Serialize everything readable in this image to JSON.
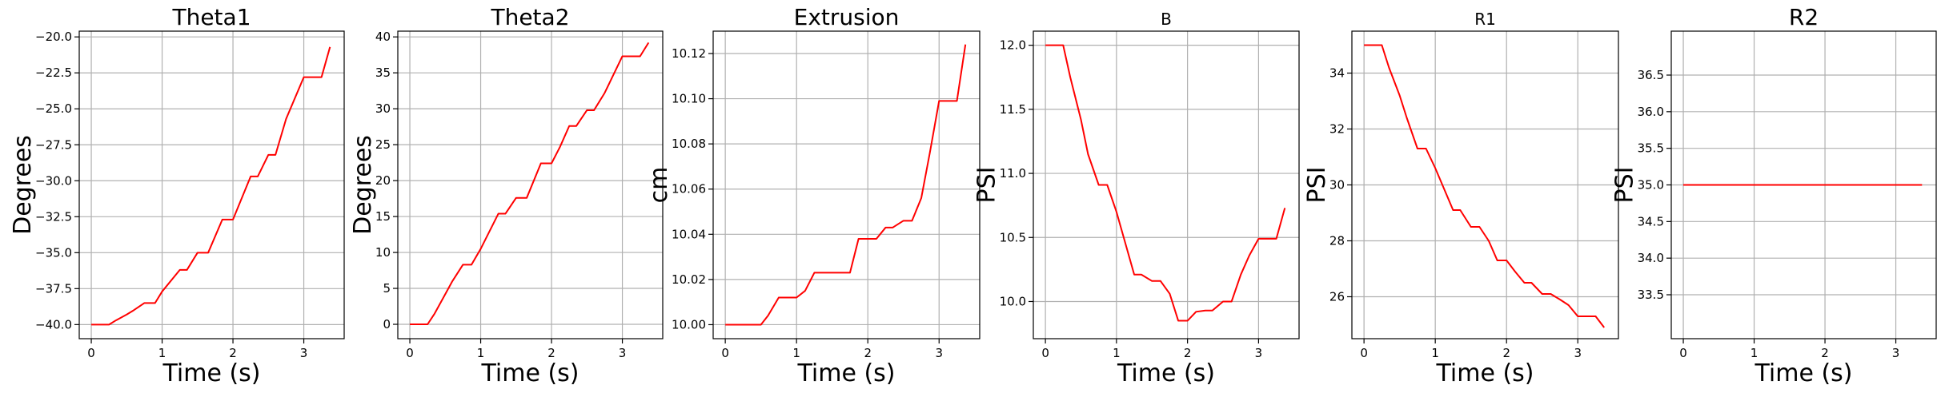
{
  "chart_data": [
    {
      "type": "line",
      "title": "Theta1",
      "title_size": "large",
      "xlabel": "Time (s)",
      "ylabel": "Degrees",
      "xlim": [
        -0.17,
        3.57
      ],
      "ylim": [
        -40.98,
        -19.6
      ],
      "xticks": [
        0,
        1,
        2,
        3
      ],
      "yticks": [
        -40.0,
        -37.5,
        -35.0,
        -32.5,
        -30.0,
        -27.5,
        -25.0,
        -22.5,
        -20.0
      ],
      "ytick_labels": [
        "−40.0",
        "−37.5",
        "−35.0",
        "−32.5",
        "−30.0",
        "−27.5",
        "−25.0",
        "−22.5",
        "−20.0"
      ],
      "grid": true,
      "color": "#ff0000",
      "series": [
        {
          "x": [
            0.0,
            0.25,
            0.35,
            0.5,
            0.6,
            0.75,
            0.9,
            1.0,
            1.25,
            1.35,
            1.5,
            1.65,
            1.85,
            2.0,
            2.25,
            2.35,
            2.5,
            2.6,
            2.75,
            3.0,
            3.25,
            3.37
          ],
          "y": [
            -40.0,
            -40.0,
            -39.7,
            -39.3,
            -39.0,
            -38.5,
            -38.5,
            -37.7,
            -36.2,
            -36.2,
            -35.0,
            -35.0,
            -32.7,
            -32.7,
            -29.7,
            -29.7,
            -28.2,
            -28.2,
            -25.7,
            -22.8,
            -22.8,
            -20.7
          ]
        }
      ]
    },
    {
      "type": "line",
      "title": "Theta2",
      "title_size": "large",
      "xlabel": "Time (s)",
      "ylabel": "Degrees",
      "xlim": [
        -0.17,
        3.57
      ],
      "ylim": [
        -2.0,
        40.8
      ],
      "xticks": [
        0,
        1,
        2,
        3
      ],
      "yticks": [
        0,
        5,
        10,
        15,
        20,
        25,
        30,
        35,
        40
      ],
      "ytick_labels": [
        "0",
        "5",
        "10",
        "15",
        "20",
        "25",
        "30",
        "35",
        "40"
      ],
      "grid": true,
      "color": "#ff0000",
      "series": [
        {
          "x": [
            0.0,
            0.25,
            0.35,
            0.5,
            0.6,
            0.75,
            0.87,
            1.0,
            1.25,
            1.35,
            1.5,
            1.65,
            1.85,
            2.0,
            2.12,
            2.25,
            2.35,
            2.5,
            2.6,
            2.75,
            3.0,
            3.25,
            3.37
          ],
          "y": [
            0.0,
            0.0,
            1.5,
            4.2,
            6.0,
            8.3,
            8.3,
            10.5,
            15.4,
            15.4,
            17.6,
            17.6,
            22.4,
            22.4,
            24.7,
            27.6,
            27.6,
            29.8,
            29.8,
            32.2,
            37.3,
            37.3,
            39.2
          ]
        }
      ]
    },
    {
      "type": "line",
      "title": "Extrusion",
      "title_size": "large",
      "xlabel": "Time (s)",
      "ylabel": "cm",
      "xlim": [
        -0.17,
        3.57
      ],
      "ylim": [
        9.9938,
        10.1299
      ],
      "xticks": [
        0,
        1,
        2,
        3
      ],
      "yticks": [
        10.0,
        10.02,
        10.04,
        10.06,
        10.08,
        10.1,
        10.12
      ],
      "ytick_labels": [
        "10.00",
        "10.02",
        "10.04",
        "10.06",
        "10.08",
        "10.10",
        "10.12"
      ],
      "grid": true,
      "color": "#ff0000",
      "series": [
        {
          "x": [
            0.0,
            0.35,
            0.5,
            0.6,
            0.75,
            0.87,
            1.0,
            1.12,
            1.25,
            1.35,
            1.5,
            1.65,
            1.75,
            1.87,
            2.0,
            2.12,
            2.25,
            2.35,
            2.5,
            2.62,
            2.75,
            2.87,
            3.0,
            3.25,
            3.37
          ],
          "y": [
            10.0,
            10.0,
            10.0,
            10.004,
            10.012,
            10.012,
            10.012,
            10.015,
            10.023,
            10.023,
            10.023,
            10.023,
            10.023,
            10.038,
            10.038,
            10.038,
            10.043,
            10.043,
            10.046,
            10.046,
            10.056,
            10.076,
            10.099,
            10.099,
            10.124
          ]
        }
      ]
    },
    {
      "type": "line",
      "title": "B",
      "title_size": "small",
      "xlabel": "Time (s)",
      "ylabel": "PSI",
      "xlim": [
        -0.17,
        3.57
      ],
      "ylim": [
        9.71,
        12.11
      ],
      "xticks": [
        0,
        1,
        2,
        3
      ],
      "yticks": [
        10.0,
        10.5,
        11.0,
        11.5,
        12.0
      ],
      "ytick_labels": [
        "10.0",
        "10.5",
        "11.0",
        "11.5",
        "12.0"
      ],
      "grid": true,
      "color": "#ff0000",
      "series": [
        {
          "x": [
            0.0,
            0.25,
            0.35,
            0.5,
            0.6,
            0.75,
            0.87,
            1.0,
            1.25,
            1.35,
            1.5,
            1.62,
            1.75,
            1.87,
            2.0,
            2.12,
            2.25,
            2.35,
            2.5,
            2.62,
            2.75,
            2.87,
            3.0,
            3.25,
            3.37
          ],
          "y": [
            12.0,
            12.0,
            11.75,
            11.42,
            11.15,
            10.91,
            10.91,
            10.7,
            10.21,
            10.21,
            10.16,
            10.16,
            10.06,
            9.85,
            9.85,
            9.92,
            9.93,
            9.93,
            10.0,
            10.0,
            10.21,
            10.36,
            10.49,
            10.49,
            10.73
          ]
        }
      ]
    },
    {
      "type": "line",
      "title": "R1",
      "title_size": "small",
      "xlabel": "Time (s)",
      "ylabel": "PSI",
      "xlim": [
        -0.17,
        3.57
      ],
      "ylim": [
        24.5,
        35.5
      ],
      "xticks": [
        0,
        1,
        2,
        3
      ],
      "yticks": [
        26,
        28,
        30,
        32,
        34
      ],
      "ytick_labels": [
        "26",
        "28",
        "30",
        "32",
        "34"
      ],
      "grid": true,
      "color": "#ff0000",
      "series": [
        {
          "x": [
            0.0,
            0.25,
            0.35,
            0.5,
            0.6,
            0.75,
            0.87,
            1.0,
            1.25,
            1.35,
            1.5,
            1.62,
            1.75,
            1.87,
            2.0,
            2.12,
            2.25,
            2.35,
            2.5,
            2.62,
            2.75,
            2.87,
            3.0,
            3.25,
            3.37
          ],
          "y": [
            35.0,
            35.0,
            34.2,
            33.2,
            32.4,
            31.3,
            31.3,
            30.6,
            29.1,
            29.1,
            28.5,
            28.5,
            28.0,
            27.3,
            27.3,
            26.9,
            26.5,
            26.5,
            26.1,
            26.1,
            25.9,
            25.7,
            25.3,
            25.3,
            24.9
          ]
        }
      ]
    },
    {
      "type": "line",
      "title": "R2",
      "title_size": "large",
      "xlabel": "Time (s)",
      "ylabel": "PSI",
      "xlim": [
        -0.17,
        3.57
      ],
      "ylim": [
        32.9,
        37.1
      ],
      "xticks": [
        0,
        1,
        2,
        3
      ],
      "yticks": [
        33.5,
        34.0,
        34.5,
        35.0,
        35.5,
        36.0,
        36.5
      ],
      "ytick_labels": [
        "33.5",
        "34.0",
        "34.5",
        "35.0",
        "35.5",
        "36.0",
        "36.5"
      ],
      "grid": true,
      "color": "#ff0000",
      "series": [
        {
          "x": [
            0.0,
            3.37
          ],
          "y": [
            35.0,
            35.0
          ]
        }
      ]
    }
  ]
}
